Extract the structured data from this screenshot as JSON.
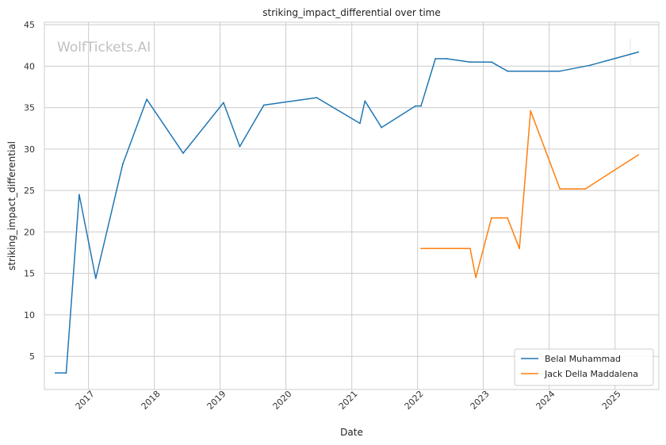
{
  "chart_data": {
    "type": "line",
    "title": "striking_impact_differential over time",
    "xlabel": "Date",
    "ylabel": "striking_impact_differential",
    "watermark": "WolfTickets.AI",
    "x_ticks": [
      "2017",
      "2018",
      "2019",
      "2020",
      "2021",
      "2022",
      "2023",
      "2024",
      "2025"
    ],
    "y_ticks": [
      5,
      10,
      15,
      20,
      25,
      30,
      35,
      40,
      45
    ],
    "ylim": [
      1.0,
      45.3
    ],
    "xlim": [
      "2016-05-01",
      "2025-09-01"
    ],
    "grid": true,
    "legend_position": "bottom-right",
    "series": [
      {
        "name": "Belal Muhammad",
        "color": "#1f77b4",
        "points": [
          {
            "x": "2016-07-01",
            "y": 3.0
          },
          {
            "x": "2016-08-30",
            "y": 3.0
          },
          {
            "x": "2016-11-10",
            "y": 24.5
          },
          {
            "x": "2017-02-10",
            "y": 14.4
          },
          {
            "x": "2017-07-10",
            "y": 28.2
          },
          {
            "x": "2017-11-20",
            "y": 36.0
          },
          {
            "x": "2018-06-10",
            "y": 29.5
          },
          {
            "x": "2019-01-20",
            "y": 35.6
          },
          {
            "x": "2019-04-20",
            "y": 30.3
          },
          {
            "x": "2019-09-01",
            "y": 35.3
          },
          {
            "x": "2020-06-20",
            "y": 36.2
          },
          {
            "x": "2021-02-15",
            "y": 33.1
          },
          {
            "x": "2021-03-15",
            "y": 35.8
          },
          {
            "x": "2021-06-15",
            "y": 32.6
          },
          {
            "x": "2021-12-20",
            "y": 35.2
          },
          {
            "x": "2022-01-20",
            "y": 35.2
          },
          {
            "x": "2022-04-10",
            "y": 40.9
          },
          {
            "x": "2022-06-10",
            "y": 40.9
          },
          {
            "x": "2022-10-20",
            "y": 40.5
          },
          {
            "x": "2023-02-15",
            "y": 40.5
          },
          {
            "x": "2023-05-15",
            "y": 39.4
          },
          {
            "x": "2024-03-01",
            "y": 39.4
          },
          {
            "x": "2024-08-15",
            "y": 40.1
          },
          {
            "x": "2025-05-10",
            "y": 41.7
          }
        ]
      },
      {
        "name": "Jack Della Maddalena",
        "color": "#ff7f0e",
        "points": [
          {
            "x": "2022-01-20",
            "y": 18.0
          },
          {
            "x": "2022-10-20",
            "y": 18.0
          },
          {
            "x": "2022-11-20",
            "y": 14.5
          },
          {
            "x": "2023-02-15",
            "y": 21.7
          },
          {
            "x": "2023-05-15",
            "y": 21.7
          },
          {
            "x": "2023-07-20",
            "y": 18.0
          },
          {
            "x": "2023-09-20",
            "y": 34.6
          },
          {
            "x": "2024-03-01",
            "y": 25.2
          },
          {
            "x": "2024-07-20",
            "y": 25.2
          },
          {
            "x": "2025-05-10",
            "y": 29.3
          }
        ]
      }
    ]
  }
}
